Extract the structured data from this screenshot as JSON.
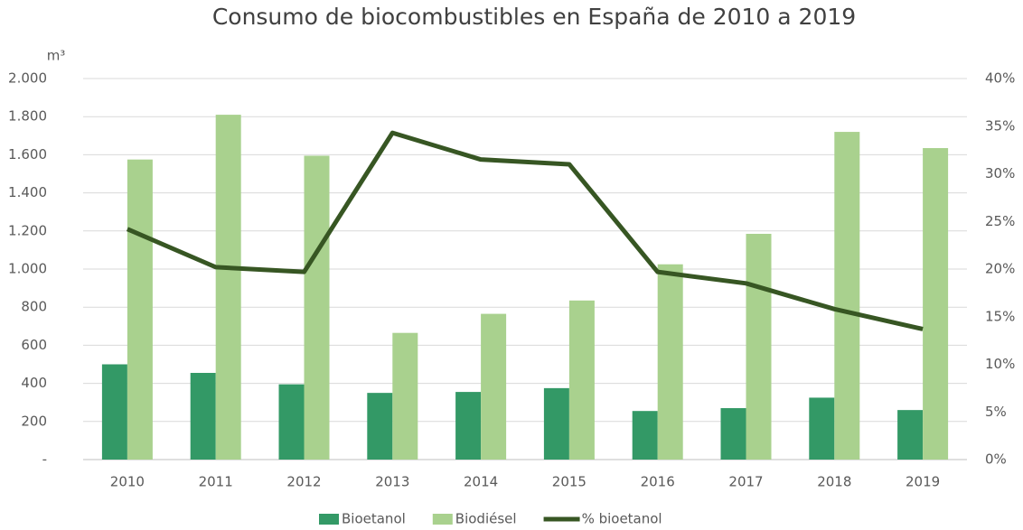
{
  "chart_data": {
    "type": "bar",
    "title": "Consumo de biocombustibles en España de 2010 a 2019",
    "y_label": "m³",
    "categories": [
      "2010",
      "2011",
      "2012",
      "2013",
      "2014",
      "2015",
      "2016",
      "2017",
      "2018",
      "2019"
    ],
    "series": [
      {
        "name": "Bioetanol",
        "type": "bar",
        "color": "#339966",
        "values": [
          500,
          455,
          395,
          350,
          355,
          375,
          255,
          270,
          325,
          260
        ]
      },
      {
        "name": "Biodiésel",
        "type": "bar",
        "color": "#a9d18e",
        "values": [
          1575,
          1810,
          1595,
          665,
          765,
          835,
          1025,
          1185,
          1720,
          1635
        ]
      },
      {
        "name": "% bioetanol",
        "type": "line",
        "axis": "y2",
        "color": "#375623",
        "values": [
          24.2,
          20.2,
          19.7,
          34.3,
          31.5,
          31.0,
          19.7,
          18.5,
          15.8,
          13.7
        ]
      }
    ],
    "ylim": [
      0,
      2000
    ],
    "yticks": [
      {
        "value": 0,
        "label": "-"
      },
      200,
      400,
      600,
      800,
      {
        "value": 1000,
        "label": "1.000"
      },
      {
        "value": 1200,
        "label": "1.200"
      },
      {
        "value": 1400,
        "label": "1.400"
      },
      {
        "value": 1600,
        "label": "1.600"
      },
      {
        "value": 1800,
        "label": "1.800"
      },
      {
        "value": 2000,
        "label": "2.000"
      }
    ],
    "y2lim": [
      0,
      40
    ],
    "y2ticks": [
      {
        "value": 0,
        "label": "0%"
      },
      {
        "value": 5,
        "label": "5%"
      },
      {
        "value": 10,
        "label": "10%"
      },
      {
        "value": 15,
        "label": "15%"
      },
      {
        "value": 20,
        "label": "20%"
      },
      {
        "value": 25,
        "label": "25%"
      },
      {
        "value": 30,
        "label": "30%"
      },
      {
        "value": 35,
        "label": "35%"
      },
      {
        "value": 40,
        "label": "40%"
      }
    ],
    "grid": true,
    "legend": "bottom"
  }
}
